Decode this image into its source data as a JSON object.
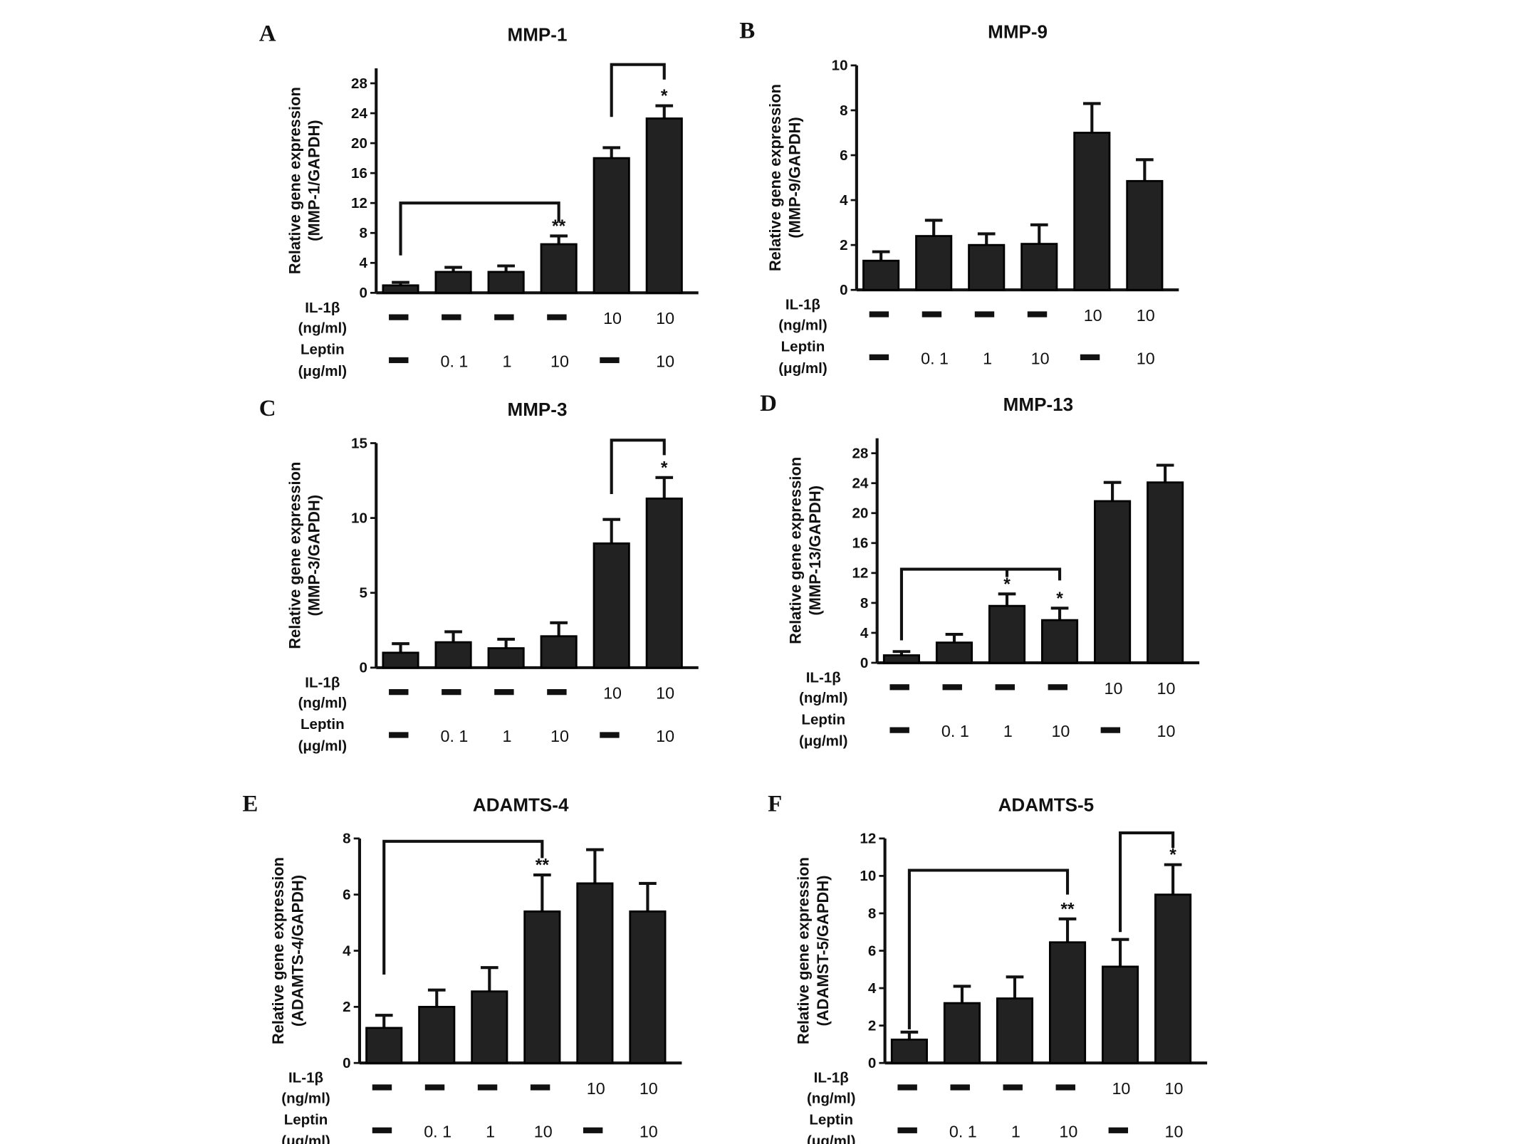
{
  "chart_data": [
    {
      "type": "bar",
      "panel": "A",
      "title": "MMP-1",
      "ylabel": [
        "Relative gene expression",
        "(MMP-1/GAPDH)"
      ],
      "ylim": [
        0,
        30
      ],
      "yticks": [
        0,
        4,
        8,
        12,
        16,
        20,
        24,
        28
      ],
      "values": [
        1.0,
        2.8,
        2.8,
        6.5,
        18.0,
        23.3
      ],
      "error_upper": [
        1.4,
        3.4,
        3.6,
        7.6,
        19.4,
        25.0
      ],
      "brackets": [
        {
          "from": 0,
          "to": 3,
          "y": 12,
          "left_end": 5,
          "right_end": 9.5
        },
        {
          "from": 4,
          "to": 5,
          "y": 30.5,
          "left_end": 23.5,
          "right_end": 28.5
        }
      ],
      "annotations": [
        {
          "bar": 3,
          "text": "**"
        },
        {
          "bar": 5,
          "text": "*"
        }
      ]
    },
    {
      "type": "bar",
      "panel": "B",
      "title": "MMP-9",
      "ylabel": [
        "Relative gene expression",
        "(MMP-9/GAPDH)"
      ],
      "ylim": [
        0,
        10
      ],
      "yticks": [
        0,
        2,
        4,
        6,
        8,
        10
      ],
      "values": [
        1.3,
        2.4,
        2.0,
        2.05,
        7.0,
        4.85
      ],
      "error_upper": [
        1.7,
        3.1,
        2.5,
        2.9,
        8.3,
        5.8
      ],
      "brackets": [],
      "annotations": []
    },
    {
      "type": "bar",
      "panel": "C",
      "title": "MMP-3",
      "ylabel": [
        "Relative gene expression",
        "(MMP-3/GAPDH)"
      ],
      "ylim": [
        0,
        15
      ],
      "yticks": [
        0,
        5,
        10,
        15
      ],
      "values": [
        1.0,
        1.7,
        1.3,
        2.1,
        8.3,
        11.3
      ],
      "error_upper": [
        1.6,
        2.4,
        1.9,
        3.0,
        9.9,
        12.7
      ],
      "brackets": [
        {
          "from": 4,
          "to": 5,
          "y": 15.2,
          "left_end": 11.6,
          "right_end": 14.2
        }
      ],
      "annotations": [
        {
          "bar": 5,
          "text": "*"
        }
      ]
    },
    {
      "type": "bar",
      "panel": "D",
      "title": "MMP-13",
      "ylabel": [
        "Relative gene expression",
        "(MMP-13/GAPDH)"
      ],
      "ylim": [
        0,
        30
      ],
      "yticks": [
        0,
        4,
        8,
        12,
        16,
        20,
        24,
        28
      ],
      "values": [
        1.0,
        2.7,
        7.6,
        5.7,
        21.6,
        24.1
      ],
      "error_upper": [
        1.5,
        3.8,
        9.2,
        7.3,
        24.1,
        26.4
      ],
      "brackets": [
        {
          "from": 0,
          "to": 3,
          "y": 12.5,
          "left_end": 3,
          "right_end": 11,
          "mid_drop": 2
        }
      ],
      "annotations": [
        {
          "bar": 2,
          "text": "*"
        },
        {
          "bar": 3,
          "text": "*"
        }
      ]
    },
    {
      "type": "bar",
      "panel": "E",
      "title": "ADAMTS-4",
      "ylabel": [
        "Relative gene expression",
        "(ADAMTS-4/GAPDH)"
      ],
      "ylim": [
        0,
        8
      ],
      "yticks": [
        0,
        2,
        4,
        6,
        8
      ],
      "values": [
        1.25,
        2.0,
        2.55,
        5.4,
        6.4,
        5.4
      ],
      "error_upper": [
        1.7,
        2.6,
        3.4,
        6.7,
        7.6,
        6.4
      ],
      "brackets": [
        {
          "from": 0,
          "to": 3,
          "y": 7.9,
          "left_end": 3.15,
          "right_end": 7.3
        }
      ],
      "annotations": [
        {
          "bar": 3,
          "text": "**"
        }
      ]
    },
    {
      "type": "bar",
      "panel": "F",
      "title": "ADAMTS-5",
      "ylabel": [
        "Relative gene expression",
        "(ADAMST-5/GAPDH)"
      ],
      "ylim": [
        0,
        12
      ],
      "yticks": [
        0,
        2,
        4,
        6,
        8,
        10,
        12
      ],
      "values": [
        1.25,
        3.2,
        3.45,
        6.45,
        5.15,
        9.0
      ],
      "error_upper": [
        1.65,
        4.1,
        4.6,
        7.7,
        6.6,
        10.6
      ],
      "brackets": [
        {
          "from": 0,
          "to": 3,
          "y": 10.3,
          "left_end": 1.8,
          "right_end": 9.0
        },
        {
          "from": 4,
          "to": 5,
          "y": 12.3,
          "left_end": 7.0,
          "right_end": 11.5
        }
      ],
      "annotations": [
        {
          "bar": 3,
          "text": "**"
        },
        {
          "bar": 5,
          "text": "*"
        }
      ]
    }
  ],
  "treatments": {
    "il1b_label": "IL-1β",
    "il1b_unit": "(ng/ml)",
    "leptin_label": "Leptin",
    "leptin_unit": "(μg/ml)",
    "il1b": [
      "-",
      "-",
      "-",
      "-",
      "10",
      "10"
    ],
    "leptin": [
      "-",
      "0. 1",
      "1",
      "10",
      "-",
      "10"
    ]
  },
  "bar_color": "#222222"
}
